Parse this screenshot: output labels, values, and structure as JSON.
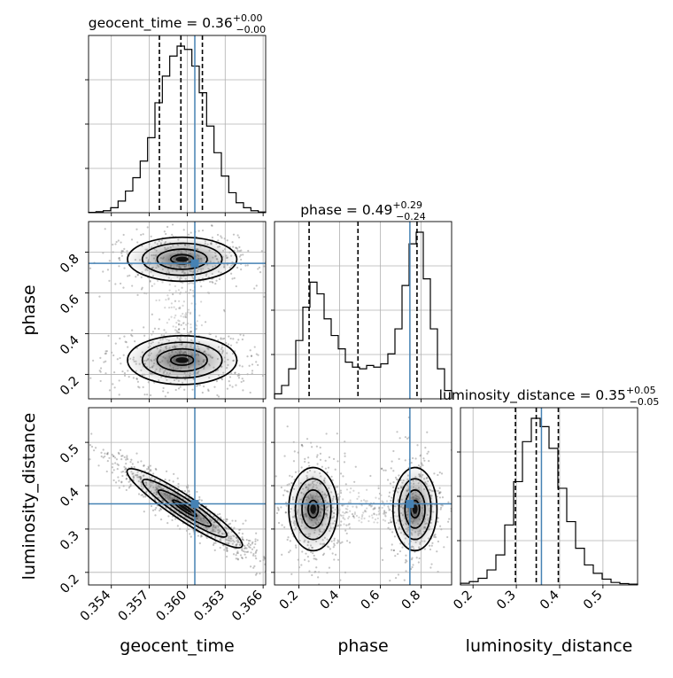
{
  "chart_data": {
    "type": "corner",
    "parameters": [
      "geocent_time",
      "phase",
      "luminosity_distance"
    ],
    "axis_labels": {
      "x": [
        "geocent_time",
        "phase",
        "luminosity_distance"
      ],
      "y": [
        "phase",
        "luminosity_distance"
      ]
    },
    "titles": [
      {
        "param": "geocent_time",
        "base": "geocent_time = 0.36",
        "plus": "+0.00",
        "minus": "−0.00"
      },
      {
        "param": "phase",
        "base": "phase = 0.49",
        "plus": "+0.29",
        "minus": "−0.24"
      },
      {
        "param": "luminosity_distance",
        "base": "luminosity_distance = 0.35",
        "plus": "+0.05",
        "minus": "−0.05"
      }
    ],
    "ranges": {
      "geocent_time": [
        0.3522,
        0.3662
      ],
      "phase": [
        0.08,
        0.95
      ],
      "luminosity_distance": [
        0.171,
        0.58
      ]
    },
    "ticks": {
      "geocent_time": {
        "values": [
          0.354,
          0.357,
          0.36,
          0.363,
          0.366
        ],
        "labels": [
          "0.354",
          "0.357",
          "0.360",
          "0.363",
          "0.366"
        ]
      },
      "phase": {
        "values": [
          0.2,
          0.4,
          0.6,
          0.8
        ],
        "labels": [
          "0.2",
          "0.4",
          "0.6",
          "0.8"
        ]
      },
      "luminosity_distance": {
        "values": [
          0.2,
          0.3,
          0.4,
          0.5
        ],
        "labels": [
          "0.2",
          "0.3",
          "0.4",
          "0.5"
        ]
      }
    },
    "truths": {
      "geocent_time": 0.3606,
      "phase": 0.745,
      "luminosity_distance": 0.358
    },
    "quantiles": {
      "geocent_time": [
        0.3578,
        0.3595,
        0.3612
      ],
      "phase": [
        0.25,
        0.49,
        0.78
      ],
      "luminosity_distance": [
        0.298,
        0.346,
        0.397
      ]
    },
    "histograms": {
      "geocent_time": [
        0.002,
        0.006,
        0.012,
        0.03,
        0.07,
        0.13,
        0.21,
        0.31,
        0.45,
        0.66,
        0.82,
        0.94,
        1.0,
        0.98,
        0.88,
        0.72,
        0.52,
        0.36,
        0.22,
        0.12,
        0.06,
        0.03,
        0.012,
        0.004
      ],
      "phase": [
        0.03,
        0.08,
        0.18,
        0.35,
        0.55,
        0.7,
        0.63,
        0.48,
        0.38,
        0.3,
        0.22,
        0.19,
        0.18,
        0.2,
        0.19,
        0.21,
        0.27,
        0.42,
        0.68,
        0.93,
        1.0,
        0.72,
        0.42,
        0.18,
        0.05
      ],
      "luminosity_distance": [
        0.01,
        0.02,
        0.04,
        0.09,
        0.18,
        0.36,
        0.62,
        0.86,
        1.0,
        0.95,
        0.82,
        0.58,
        0.38,
        0.22,
        0.12,
        0.07,
        0.035,
        0.015,
        0.008,
        0.005
      ]
    },
    "grid": true,
    "truth_color": "#4682b4"
  }
}
